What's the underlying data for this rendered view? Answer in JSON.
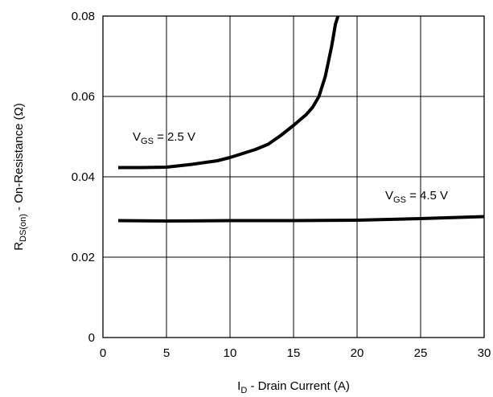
{
  "chart_data": {
    "type": "line",
    "title": "",
    "xlabel": {
      "main": "I",
      "sub": "D",
      "rest": " - Drain Current (A)"
    },
    "ylabel": {
      "main": "R",
      "sub": "DS(on)",
      "rest": " - On-Resistance (Ω)"
    },
    "xlim": [
      0,
      30
    ],
    "ylim": [
      0,
      0.08
    ],
    "x_ticks": [
      0,
      5,
      10,
      15,
      20,
      25,
      30
    ],
    "x_tick_labels": [
      "0",
      "5",
      "10",
      "15",
      "20",
      "25",
      "30"
    ],
    "y_ticks": [
      0,
      0.02,
      0.04,
      0.06,
      0.08
    ],
    "y_tick_labels": [
      "0",
      "0.02",
      "0.04",
      "0.06",
      "0.08"
    ],
    "grid": true,
    "series": [
      {
        "label": {
          "main": "V",
          "sub": "GS",
          "rest": " = 2.5 V"
        },
        "points": [
          [
            1.2,
            0.0423
          ],
          [
            3,
            0.0423
          ],
          [
            5,
            0.0424
          ],
          [
            7,
            0.0431
          ],
          [
            9,
            0.044
          ],
          [
            10,
            0.0448
          ],
          [
            11,
            0.0458
          ],
          [
            12,
            0.0468
          ],
          [
            13,
            0.0481
          ],
          [
            14,
            0.0503
          ],
          [
            15,
            0.0528
          ],
          [
            16,
            0.0555
          ],
          [
            16.5,
            0.0573
          ],
          [
            17,
            0.06
          ],
          [
            17.5,
            0.065
          ],
          [
            18,
            0.0725
          ],
          [
            18.3,
            0.078
          ],
          [
            18.5,
            0.08
          ]
        ]
      },
      {
        "label": {
          "main": "V",
          "sub": "GS",
          "rest": " = 4.5 V"
        },
        "points": [
          [
            1.2,
            0.0291
          ],
          [
            5,
            0.029
          ],
          [
            10,
            0.0291
          ],
          [
            15,
            0.0291
          ],
          [
            20,
            0.0292
          ],
          [
            25,
            0.0296
          ],
          [
            30,
            0.0301
          ]
        ]
      }
    ]
  }
}
